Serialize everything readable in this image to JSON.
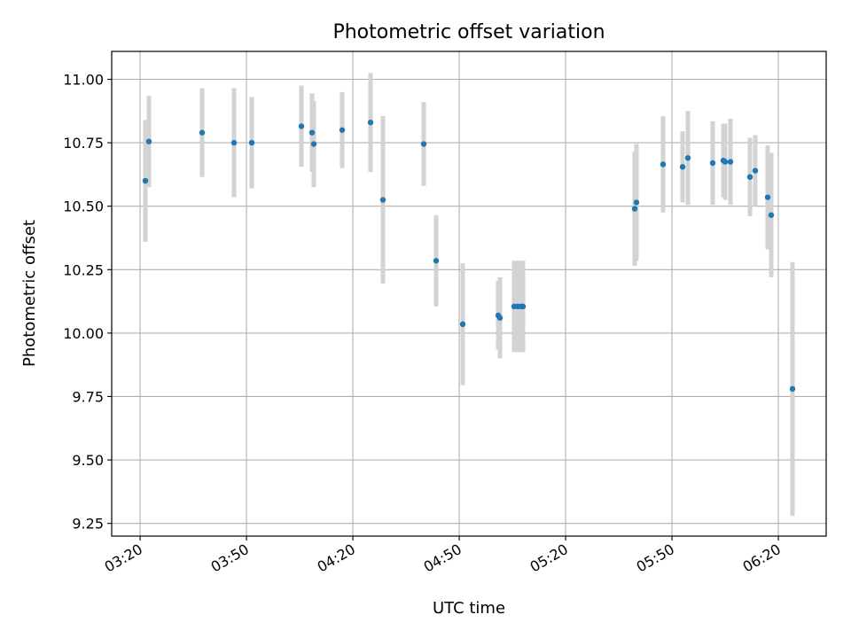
{
  "chart_data": {
    "type": "scatter",
    "title": "Photometric offset variation",
    "xlabel": "UTC time",
    "ylabel": "Photometric offset",
    "x_ticks": [
      "03:20",
      "03:50",
      "04:20",
      "04:50",
      "05:20",
      "05:50",
      "06:20"
    ],
    "x_tick_minutes": [
      200,
      230,
      260,
      290,
      320,
      350,
      380
    ],
    "xlim_minutes": [
      192,
      393.5
    ],
    "y_ticks": [
      "11.00",
      "10.75",
      "10.50",
      "10.25",
      "10.00",
      "9.75",
      "9.50",
      "9.25"
    ],
    "y_tick_values": [
      11.0,
      10.75,
      10.5,
      10.25,
      10.0,
      9.75,
      9.5,
      9.25
    ],
    "ylim": [
      9.2,
      11.11
    ],
    "grid": true,
    "point_color": "#1f77b4",
    "errorbar_color": "#d3d3d3",
    "points": [
      {
        "t": 201.5,
        "y": 10.6,
        "err": 0.24
      },
      {
        "t": 202.5,
        "y": 10.755,
        "err": 0.18
      },
      {
        "t": 217.5,
        "y": 10.79,
        "err": 0.175
      },
      {
        "t": 226.5,
        "y": 10.75,
        "err": 0.215
      },
      {
        "t": 231.5,
        "y": 10.75,
        "err": 0.18
      },
      {
        "t": 245.5,
        "y": 10.815,
        "err": 0.16
      },
      {
        "t": 248.5,
        "y": 10.79,
        "err": 0.155
      },
      {
        "t": 249.0,
        "y": 10.745,
        "err": 0.17
      },
      {
        "t": 257.0,
        "y": 10.8,
        "err": 0.15
      },
      {
        "t": 265.0,
        "y": 10.83,
        "err": 0.195
      },
      {
        "t": 268.5,
        "y": 10.525,
        "err": 0.33
      },
      {
        "t": 280.0,
        "y": 10.745,
        "err": 0.165
      },
      {
        "t": 283.5,
        "y": 10.285,
        "err": 0.18
      },
      {
        "t": 291.0,
        "y": 10.035,
        "err": 0.24
      },
      {
        "t": 301.0,
        "y": 10.07,
        "err": 0.135
      },
      {
        "t": 301.5,
        "y": 10.06,
        "err": 0.16
      },
      {
        "t": 305.5,
        "y": 10.105,
        "err": 0.18
      },
      {
        "t": 306.5,
        "y": 10.105,
        "err": 0.18
      },
      {
        "t": 307.5,
        "y": 10.105,
        "err": 0.18
      },
      {
        "t": 308.0,
        "y": 10.105,
        "err": 0.18
      },
      {
        "t": 339.5,
        "y": 10.49,
        "err": 0.225
      },
      {
        "t": 340.0,
        "y": 10.515,
        "err": 0.23
      },
      {
        "t": 347.5,
        "y": 10.665,
        "err": 0.19
      },
      {
        "t": 353.0,
        "y": 10.655,
        "err": 0.14
      },
      {
        "t": 354.5,
        "y": 10.69,
        "err": 0.185
      },
      {
        "t": 361.5,
        "y": 10.67,
        "err": 0.165
      },
      {
        "t": 364.5,
        "y": 10.68,
        "err": 0.145
      },
      {
        "t": 365.0,
        "y": 10.675,
        "err": 0.15
      },
      {
        "t": 366.5,
        "y": 10.675,
        "err": 0.17
      },
      {
        "t": 372.0,
        "y": 10.615,
        "err": 0.155
      },
      {
        "t": 373.5,
        "y": 10.64,
        "err": 0.14
      },
      {
        "t": 377.0,
        "y": 10.535,
        "err": 0.205
      },
      {
        "t": 378.0,
        "y": 10.465,
        "err": 0.245
      },
      {
        "t": 384.0,
        "y": 9.78,
        "err": 0.5
      }
    ]
  }
}
